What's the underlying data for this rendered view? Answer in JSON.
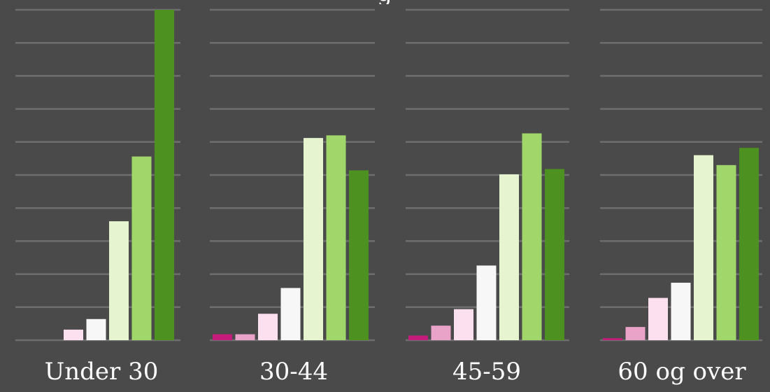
{
  "colors": {
    "background": "#4a4a4a",
    "gridline": "#6e6e6e",
    "label": "#ffffff",
    "series": [
      "#c51b7d",
      "#e9a3c9",
      "#fde0ef",
      "#f7f7f7",
      "#e6f5d0",
      "#a1d76a",
      "#4d9221"
    ]
  },
  "title_fragment": "g",
  "chart_data": {
    "type": "bar",
    "grid": true,
    "ylim": [
      0,
      50
    ],
    "categories": [
      "Under 30",
      "30-44",
      "45-59",
      "60 og over"
    ],
    "series": [
      {
        "values": [
          0,
          0.9,
          0.7,
          0.3
        ]
      },
      {
        "values": [
          0,
          0.9,
          2.2,
          2.0
        ]
      },
      {
        "values": [
          1.6,
          4.0,
          4.7,
          6.4
        ]
      },
      {
        "values": [
          3.2,
          7.9,
          11.3,
          8.7
        ]
      },
      {
        "values": [
          18.0,
          30.6,
          25.1,
          28.0
        ]
      },
      {
        "values": [
          27.8,
          31.0,
          31.3,
          26.5
        ]
      },
      {
        "values": [
          50.0,
          25.7,
          25.9,
          29.1
        ]
      }
    ]
  }
}
